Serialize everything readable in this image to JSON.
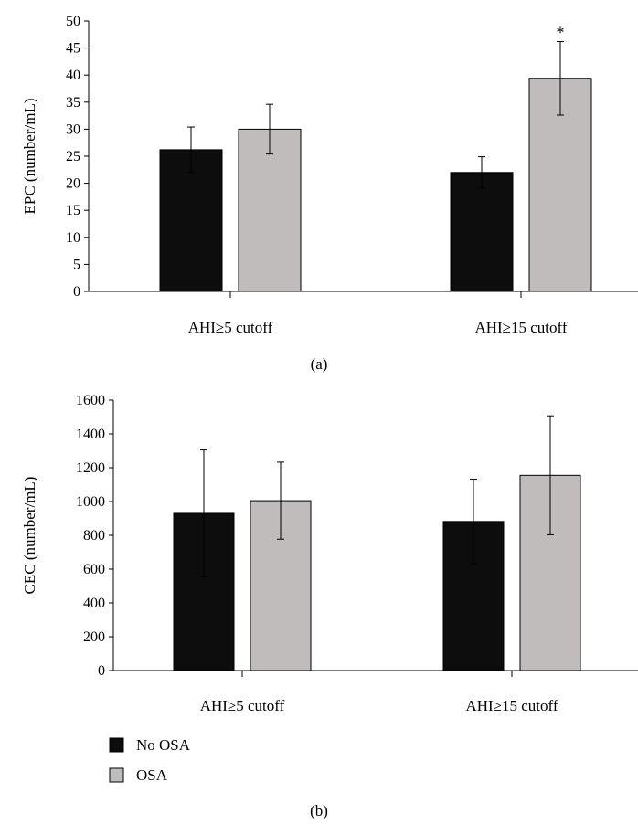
{
  "chart_data": [
    {
      "type": "bar",
      "panel_label": "(a)",
      "ylabel": "EPC (number/mL)",
      "ylim": [
        0,
        50
      ],
      "yticks": [
        0,
        5,
        10,
        15,
        20,
        25,
        30,
        35,
        40,
        45,
        50
      ],
      "categories": [
        "AHI≥5 cutoff",
        "AHI≥15 cutoff"
      ],
      "series": [
        {
          "name": "No OSA",
          "color": "#0d0d0d",
          "values": [
            26.2,
            22.0
          ],
          "errors": [
            4.2,
            2.9
          ]
        },
        {
          "name": "OSA",
          "color": "#bfbcbb",
          "values": [
            30.0,
            39.4
          ],
          "errors": [
            4.6,
            6.8
          ]
        }
      ],
      "annotations": [
        {
          "text": "*",
          "category": 1,
          "series": 1
        }
      ],
      "grid": false
    },
    {
      "type": "bar",
      "panel_label": "(b)",
      "ylabel": "CEC (number/mL)",
      "ylim": [
        0,
        1600
      ],
      "yticks": [
        0,
        200,
        400,
        600,
        800,
        1000,
        1200,
        1400,
        1600
      ],
      "categories": [
        "AHI≥5 cutoff",
        "AHI≥15 cutoff"
      ],
      "series": [
        {
          "name": "No OSA",
          "color": "#0d0d0d",
          "values": [
            930,
            882
          ],
          "errors": [
            375,
            250
          ]
        },
        {
          "name": "OSA",
          "color": "#bfbcbb",
          "values": [
            1005,
            1155
          ],
          "errors": [
            228,
            352
          ]
        }
      ],
      "grid": false,
      "legend": {
        "placement": "bottom-left",
        "entries": [
          "No OSA",
          "OSA"
        ]
      }
    }
  ]
}
